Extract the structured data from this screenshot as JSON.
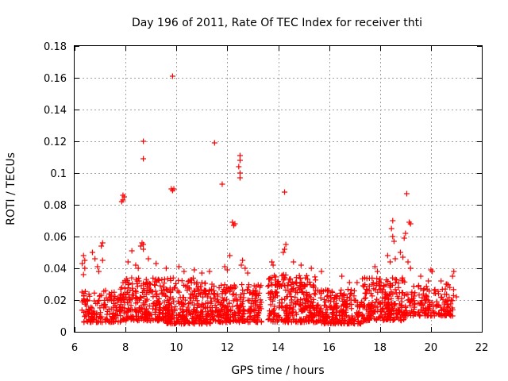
{
  "chart_data": {
    "type": "scatter",
    "title": "Day 196 of 2011, Rate Of TEC Index for receiver thti",
    "xlabel": "GPS time / hours",
    "ylabel": "ROTI / TECUs",
    "xlim": [
      6,
      22
    ],
    "ylim": [
      0,
      0.18
    ],
    "xticks": [
      6,
      8,
      10,
      12,
      14,
      16,
      18,
      20,
      22
    ],
    "yticks": [
      0,
      0.02,
      0.04,
      0.06,
      0.08,
      0.1,
      0.12,
      0.14,
      0.16,
      0.18
    ],
    "xtick_labels": [
      "6",
      "8",
      "10",
      "12",
      "14",
      "16",
      "18",
      "20",
      "22"
    ],
    "ytick_labels": [
      "0",
      "0.02",
      "0.04",
      "0.06",
      "0.08",
      "0.1",
      "0.12",
      "0.14",
      "0.16",
      "0.18"
    ],
    "grid": true,
    "marker": "+",
    "color": "#ff0000",
    "series": [
      {
        "name": "ROTI",
        "points": [
          [
            9.85,
            0.161
          ],
          [
            8.7,
            0.12
          ],
          [
            11.5,
            0.119
          ],
          [
            8.7,
            0.109
          ],
          [
            12.5,
            0.111
          ],
          [
            12.5,
            0.108
          ],
          [
            12.45,
            0.104
          ],
          [
            12.5,
            0.1
          ],
          [
            12.5,
            0.097
          ],
          [
            11.8,
            0.093
          ],
          [
            9.8,
            0.09
          ],
          [
            9.85,
            0.089
          ],
          [
            9.9,
            0.09
          ],
          [
            7.9,
            0.086
          ],
          [
            7.95,
            0.085
          ],
          [
            7.9,
            0.083
          ],
          [
            7.85,
            0.082
          ],
          [
            14.25,
            0.088
          ],
          [
            19.05,
            0.087
          ],
          [
            12.2,
            0.069
          ],
          [
            12.25,
            0.067
          ],
          [
            12.3,
            0.068
          ],
          [
            18.5,
            0.07
          ],
          [
            18.45,
            0.065
          ],
          [
            18.5,
            0.06
          ],
          [
            18.55,
            0.057
          ],
          [
            19.15,
            0.069
          ],
          [
            19.2,
            0.068
          ],
          [
            19.0,
            0.062
          ],
          [
            18.95,
            0.059
          ],
          [
            8.65,
            0.056
          ],
          [
            8.7,
            0.055
          ],
          [
            8.6,
            0.054
          ],
          [
            8.7,
            0.052
          ],
          [
            7.1,
            0.056
          ],
          [
            7.05,
            0.054
          ],
          [
            8.25,
            0.051
          ],
          [
            12.1,
            0.048
          ],
          [
            14.3,
            0.055
          ],
          [
            14.25,
            0.052
          ],
          [
            14.2,
            0.05
          ],
          [
            13.75,
            0.044
          ],
          [
            13.8,
            0.042
          ],
          [
            12.6,
            0.045
          ],
          [
            12.55,
            0.042
          ],
          [
            6.35,
            0.048
          ],
          [
            6.4,
            0.045
          ],
          [
            6.3,
            0.043
          ],
          [
            6.4,
            0.04
          ],
          [
            6.35,
            0.036
          ],
          [
            6.7,
            0.05
          ],
          [
            6.8,
            0.046
          ],
          [
            7.1,
            0.045
          ],
          [
            6.9,
            0.041
          ],
          [
            6.95,
            0.038
          ],
          [
            8.1,
            0.044
          ],
          [
            8.4,
            0.042
          ],
          [
            8.5,
            0.04
          ],
          [
            8.9,
            0.046
          ],
          [
            9.2,
            0.043
          ],
          [
            9.6,
            0.04
          ],
          [
            10.1,
            0.041
          ],
          [
            10.3,
            0.038
          ],
          [
            10.7,
            0.039
          ],
          [
            11.0,
            0.037
          ],
          [
            11.3,
            0.038
          ],
          [
            11.9,
            0.041
          ],
          [
            12.0,
            0.039
          ],
          [
            12.7,
            0.04
          ],
          [
            12.8,
            0.037
          ],
          [
            14.6,
            0.044
          ],
          [
            14.9,
            0.042
          ],
          [
            15.3,
            0.04
          ],
          [
            15.7,
            0.038
          ],
          [
            16.5,
            0.035
          ],
          [
            16.8,
            0.031
          ],
          [
            17.1,
            0.031
          ],
          [
            17.4,
            0.034
          ],
          [
            17.8,
            0.041
          ],
          [
            17.9,
            0.038
          ],
          [
            18.3,
            0.048
          ],
          [
            18.4,
            0.044
          ],
          [
            18.6,
            0.046
          ],
          [
            18.8,
            0.05
          ],
          [
            18.9,
            0.047
          ],
          [
            19.1,
            0.044
          ],
          [
            19.2,
            0.04
          ],
          [
            19.6,
            0.035
          ],
          [
            19.9,
            0.032
          ],
          [
            20.0,
            0.039
          ],
          [
            20.05,
            0.038
          ],
          [
            20.4,
            0.032
          ],
          [
            20.6,
            0.03
          ],
          [
            20.9,
            0.038
          ],
          [
            20.85,
            0.035
          ],
          [
            19.5,
            0.018
          ],
          [
            19.7,
            0.015
          ],
          [
            20.2,
            0.016
          ],
          [
            20.5,
            0.014
          ],
          [
            20.7,
            0.016
          ],
          [
            20.75,
            0.013
          ],
          [
            20.8,
            0.02
          ],
          [
            21.0,
            0.022
          ],
          [
            20.3,
            0.024
          ],
          [
            19.8,
            0.02
          ],
          [
            7.8,
            0.013
          ],
          [
            9.0,
            0.011
          ],
          [
            10.5,
            0.012
          ],
          [
            11.7,
            0.011
          ],
          [
            12.9,
            0.01
          ],
          [
            14.7,
            0.012
          ],
          [
            15.9,
            0.011
          ],
          [
            16.9,
            0.01
          ],
          [
            17.6,
            0.013
          ],
          [
            18.7,
            0.014
          ]
        ]
      }
    ],
    "dense_bands": [
      {
        "x0": 6.25,
        "x1": 7.8,
        "ylo": 0.006,
        "yhi": 0.026,
        "n": 150
      },
      {
        "x0": 7.8,
        "x1": 9.6,
        "ylo": 0.007,
        "yhi": 0.034,
        "n": 260
      },
      {
        "x0": 9.6,
        "x1": 11.4,
        "ylo": 0.005,
        "yhi": 0.034,
        "n": 280
      },
      {
        "x0": 11.4,
        "x1": 13.35,
        "ylo": 0.006,
        "yhi": 0.03,
        "n": 260
      },
      {
        "x0": 13.6,
        "x1": 15.6,
        "ylo": 0.006,
        "yhi": 0.036,
        "n": 300
      },
      {
        "x0": 15.6,
        "x1": 17.3,
        "ylo": 0.005,
        "yhi": 0.027,
        "n": 220
      },
      {
        "x0": 17.3,
        "x1": 19.0,
        "ylo": 0.007,
        "yhi": 0.034,
        "n": 240
      },
      {
        "x0": 19.0,
        "x1": 20.9,
        "ylo": 0.01,
        "yhi": 0.03,
        "n": 160
      }
    ]
  }
}
